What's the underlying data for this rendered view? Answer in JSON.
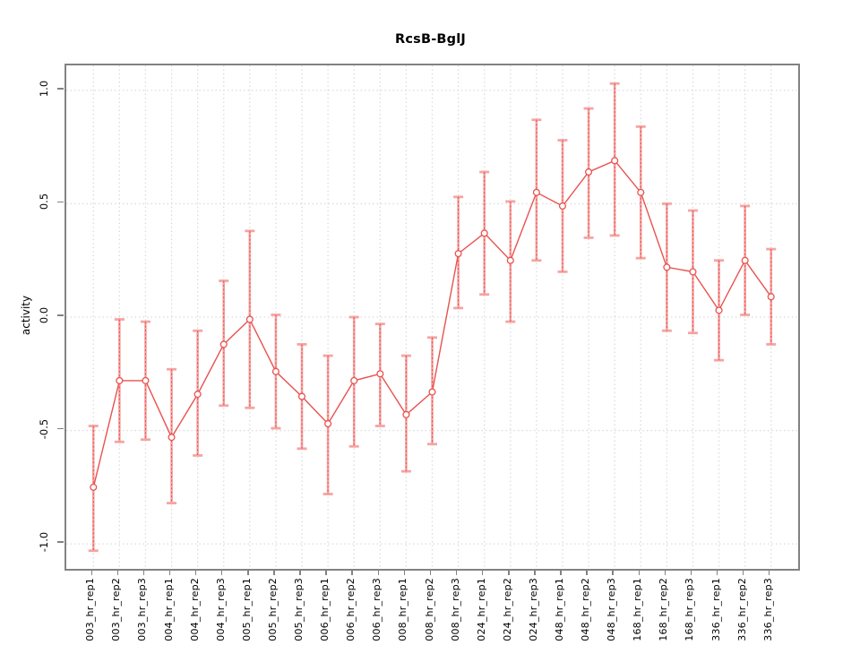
{
  "chart": {
    "title": "RcsB-BglJ",
    "ylabel": "activity",
    "xlabel": ""
  },
  "chart_data": {
    "type": "line",
    "title": "RcsB-BglJ",
    "xlabel": "",
    "ylabel": "activity",
    "ylim": [
      -1.11,
      1.11
    ],
    "grid": true,
    "legend_position": "none",
    "marker": "open-circle",
    "y_ticks": [
      1.0,
      0.5,
      0.0,
      -0.5,
      -1.0
    ],
    "y_tick_labels": [
      "1.0",
      "0.5",
      "0.0",
      "-0.5",
      "-1.0"
    ],
    "categories": [
      "003_hr_rep1",
      "003_hr_rep2",
      "003_hr_rep3",
      "004_hr_rep1",
      "004_hr_rep2",
      "004_hr_rep3",
      "005_hr_rep1",
      "005_hr_rep2",
      "005_hr_rep3",
      "006_hr_rep1",
      "006_hr_rep2",
      "006_hr_rep3",
      "008_hr_rep1",
      "008_hr_rep2",
      "008_hr_rep3",
      "024_hr_rep1",
      "024_hr_rep2",
      "024_hr_rep3",
      "048_hr_rep1",
      "048_hr_rep2",
      "048_hr_rep3",
      "168_hr_rep1",
      "168_hr_rep2",
      "168_hr_rep3",
      "336_hr_rep1",
      "336_hr_rep2",
      "336_hr_rep3"
    ],
    "series": [
      {
        "name": "activity",
        "values": [
          -0.75,
          -0.28,
          -0.28,
          -0.53,
          -0.34,
          -0.12,
          -0.01,
          -0.24,
          -0.35,
          -0.47,
          -0.28,
          -0.25,
          -0.43,
          -0.33,
          0.28,
          0.37,
          0.25,
          0.55,
          0.49,
          0.64,
          0.69,
          0.55,
          0.22,
          0.2,
          0.03,
          0.25,
          0.09
        ],
        "err_low": [
          -1.03,
          -0.55,
          -0.54,
          -0.82,
          -0.61,
          -0.39,
          -0.4,
          -0.49,
          -0.58,
          -0.78,
          -0.57,
          -0.48,
          -0.68,
          -0.56,
          0.04,
          0.1,
          -0.02,
          0.25,
          0.2,
          0.35,
          0.36,
          0.26,
          -0.06,
          -0.07,
          -0.19,
          0.01,
          -0.12
        ],
        "err_high": [
          -0.48,
          -0.01,
          -0.02,
          -0.23,
          -0.06,
          0.16,
          0.38,
          0.01,
          -0.12,
          -0.17,
          0.0,
          -0.03,
          -0.17,
          -0.09,
          0.53,
          0.64,
          0.51,
          0.87,
          0.78,
          0.92,
          1.03,
          0.84,
          0.5,
          0.47,
          0.25,
          0.49,
          0.3
        ]
      }
    ],
    "colors": {
      "point_line": "#e8524f",
      "error_bar": "#f5a4a3",
      "error_bar_dash": "#e8524f",
      "grid": "#dcdcdc",
      "frame": "#828282",
      "text": "#000000",
      "background": "#ffffff"
    }
  }
}
